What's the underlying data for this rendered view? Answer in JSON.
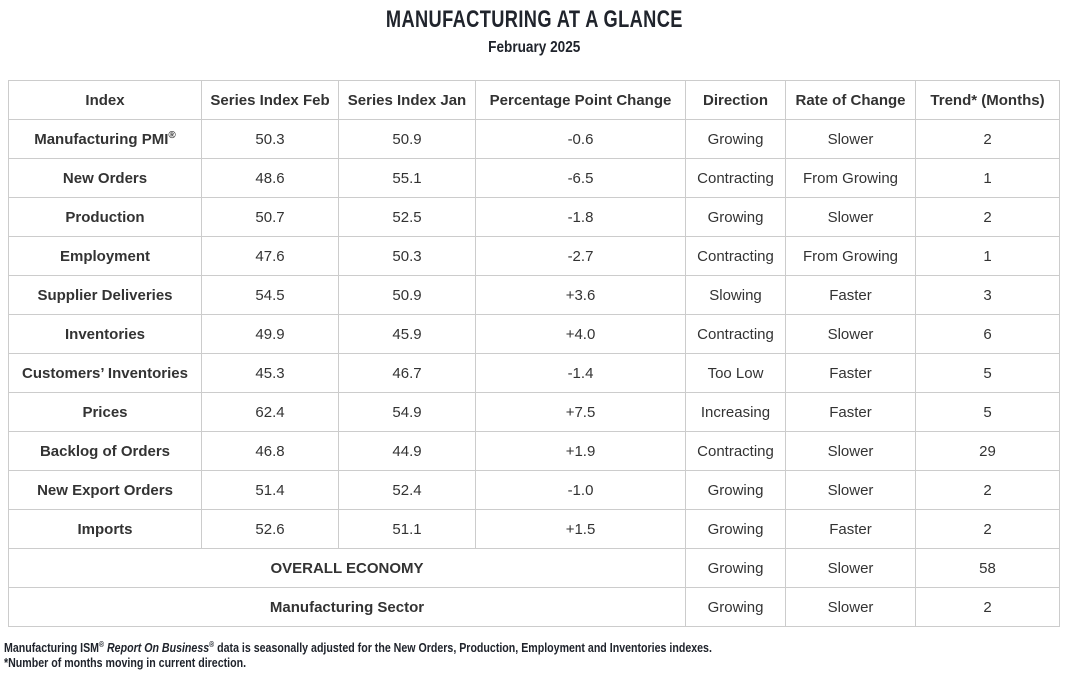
{
  "page": {
    "title": "MANUFACTURING AT A GLANCE",
    "subtitle": "February 2025"
  },
  "table": {
    "columns": [
      "Index",
      "Series Index Feb",
      "Series Index Jan",
      "Percentage Point Change",
      "Direction",
      "Rate of Change",
      "Trend* (Months)"
    ],
    "rows": [
      {
        "index": "Manufacturing PMI",
        "index_sup": "®",
        "feb": "50.3",
        "jan": "50.9",
        "change": "-0.6",
        "direction": "Growing",
        "rate": "Slower",
        "trend": "2"
      },
      {
        "index": "New Orders",
        "feb": "48.6",
        "jan": "55.1",
        "change": "-6.5",
        "direction": "Contracting",
        "rate": "From Growing",
        "trend": "1"
      },
      {
        "index": "Production",
        "feb": "50.7",
        "jan": "52.5",
        "change": "-1.8",
        "direction": "Growing",
        "rate": "Slower",
        "trend": "2"
      },
      {
        "index": "Employment",
        "feb": "47.6",
        "jan": "50.3",
        "change": "-2.7",
        "direction": "Contracting",
        "rate": "From Growing",
        "trend": "1"
      },
      {
        "index": "Supplier Deliveries",
        "feb": "54.5",
        "jan": "50.9",
        "change": "+3.6",
        "direction": "Slowing",
        "rate": "Faster",
        "trend": "3"
      },
      {
        "index": "Inventories",
        "feb": "49.9",
        "jan": "45.9",
        "change": "+4.0",
        "direction": "Contracting",
        "rate": "Slower",
        "trend": "6"
      },
      {
        "index": "Customers’ Inventories",
        "feb": "45.3",
        "jan": "46.7",
        "change": "-1.4",
        "direction": "Too Low",
        "rate": "Faster",
        "trend": "5"
      },
      {
        "index": "Prices",
        "feb": "62.4",
        "jan": "54.9",
        "change": "+7.5",
        "direction": "Increasing",
        "rate": "Faster",
        "trend": "5"
      },
      {
        "index": "Backlog of Orders",
        "feb": "46.8",
        "jan": "44.9",
        "change": "+1.9",
        "direction": "Contracting",
        "rate": "Slower",
        "trend": "29"
      },
      {
        "index": "New Export Orders",
        "feb": "51.4",
        "jan": "52.4",
        "change": "-1.0",
        "direction": "Growing",
        "rate": "Slower",
        "trend": "2"
      },
      {
        "index": "Imports",
        "feb": "52.6",
        "jan": "51.1",
        "change": "+1.5",
        "direction": "Growing",
        "rate": "Faster",
        "trend": "2"
      }
    ],
    "summary_rows": [
      {
        "label": "OVERALL ECONOMY",
        "direction": "Growing",
        "rate": "Slower",
        "trend": "58"
      },
      {
        "label": "Manufacturing Sector",
        "direction": "Growing",
        "rate": "Slower",
        "trend": "2"
      }
    ]
  },
  "footnotes": {
    "line1_segments": [
      {
        "style": "normal",
        "text": "Manufacturing ISM"
      },
      {
        "style": "sup",
        "text": "®"
      },
      {
        "style": "italic",
        "text": " Report On Business"
      },
      {
        "style": "sup",
        "text": "®"
      },
      {
        "style": "normal",
        "text": " data is seasonally adjusted for the New Orders, Production, Employment and Inventories indexes."
      }
    ],
    "line2": "*Number of months moving in current direction."
  },
  "colors": {
    "text": "#333333",
    "title": "#20242c",
    "border": "#cccccc",
    "background": "#ffffff"
  }
}
